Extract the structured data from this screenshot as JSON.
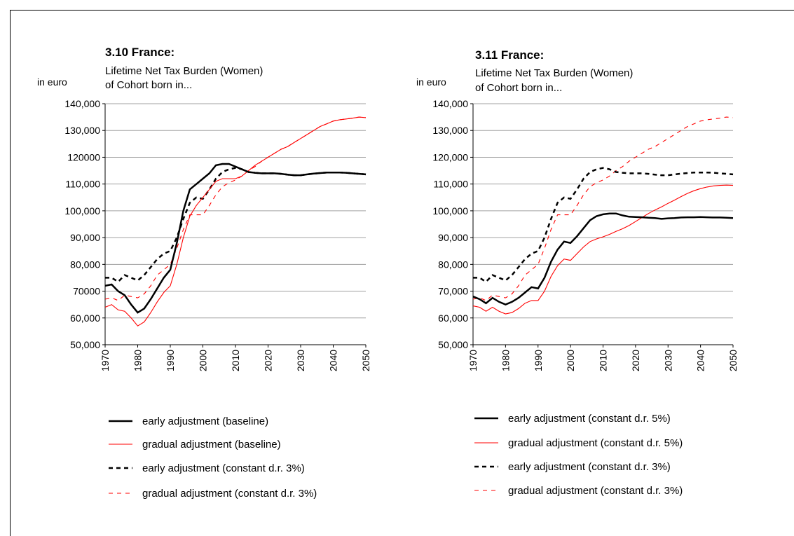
{
  "chart_data": [
    {
      "type": "line",
      "title": "3.10 France:",
      "subtitle": [
        "Lifetime Net Tax Burden (Women)",
        "of Cohort born in..."
      ],
      "ylabel": "in euro",
      "x": [
        1970,
        1972,
        1974,
        1976,
        1978,
        1980,
        1982,
        1984,
        1986,
        1988,
        1990,
        1992,
        1994,
        1996,
        1998,
        2000,
        2002,
        2004,
        2006,
        2008,
        2010,
        2012,
        2014,
        2016,
        2018,
        2020,
        2022,
        2024,
        2026,
        2028,
        2030,
        2032,
        2034,
        2036,
        2038,
        2040,
        2042,
        2044,
        2046,
        2048,
        2050
      ],
      "xlim": [
        1970,
        2050
      ],
      "xticks": [
        1970,
        1980,
        1990,
        2000,
        2010,
        2020,
        2030,
        2040,
        2050
      ],
      "ylim": [
        50000,
        140000
      ],
      "yticks": [
        {
          "value": 50000,
          "label": "50,000"
        },
        {
          "value": 60000,
          "label": "60,000"
        },
        70000,
        {
          "value": 80000,
          "label": "80,000"
        },
        {
          "value": 90000,
          "label": "90,000"
        },
        {
          "value": 100000,
          "label": "100,000"
        },
        {
          "value": 110000,
          "label": "110,000"
        },
        120000,
        {
          "value": 130000,
          "label": "130,000"
        },
        {
          "value": 140000,
          "label": "140,000"
        }
      ],
      "grid": true,
      "series": [
        {
          "name": "early adjustment (baseline)",
          "color": "#000000",
          "style": "solid",
          "values": [
            72000,
            72500,
            70000,
            68500,
            65000,
            62000,
            63500,
            67000,
            71000,
            75000,
            78000,
            88000,
            100000,
            108000,
            110000,
            112000,
            114000,
            117000,
            117500,
            117500,
            116500,
            115500,
            114500,
            114200,
            114000,
            114000,
            114000,
            113800,
            113500,
            113300,
            113300,
            113600,
            113900,
            114100,
            114300,
            114300,
            114300,
            114200,
            114000,
            113800,
            113600
          ]
        },
        {
          "name": "gradual adjustment (baseline)",
          "color": "#ff0000",
          "style": "solid",
          "values": [
            64000,
            65000,
            63000,
            62500,
            60000,
            57000,
            58500,
            62000,
            66000,
            69500,
            72000,
            80000,
            90000,
            98000,
            102000,
            105000,
            108000,
            111000,
            112000,
            112000,
            112000,
            113000,
            115000,
            117000,
            118500,
            120000,
            121500,
            123000,
            124000,
            125500,
            127000,
            128500,
            130000,
            131500,
            132500,
            133500,
            134000,
            134300,
            134600,
            135000,
            134800
          ]
        },
        {
          "name": "early adjustment (constant d.r. 3%)",
          "color": "#000000",
          "style": "dashed",
          "values": [
            75000,
            75000,
            73500,
            76000,
            75000,
            74000,
            76000,
            79000,
            82000,
            84000,
            85000,
            90000,
            97000,
            103000,
            105000,
            104500,
            108000,
            112000,
            114500,
            115500,
            116000,
            115500,
            114500,
            114200,
            114000,
            114000,
            114000,
            113800,
            113500,
            113300,
            113300,
            113600,
            113900,
            114100,
            114300,
            114300,
            114300,
            114200,
            114000,
            113800,
            113600
          ]
        },
        {
          "name": "gradual adjustment (constant d.r. 3%)",
          "color": "#ff0000",
          "style": "dashed",
          "values": [
            67000,
            67500,
            66500,
            68500,
            68000,
            67500,
            69000,
            72000,
            76000,
            78000,
            80000,
            86000,
            93000,
            98500,
            98500,
            98500,
            102000,
            106000,
            109000,
            110500,
            111500,
            113000,
            115000,
            116500,
            118500,
            120000,
            121500,
            123000,
            124000,
            125500,
            127000,
            128500,
            130000,
            131500,
            132500,
            133500,
            134000,
            134300,
            134600,
            135000,
            134800
          ]
        }
      ]
    },
    {
      "type": "line",
      "title": "3.11 France:",
      "subtitle": [
        "Lifetime Net Tax Burden (Women)",
        "of Cohort born in..."
      ],
      "ylabel": "in euro",
      "x": [
        1970,
        1972,
        1974,
        1976,
        1978,
        1980,
        1982,
        1984,
        1986,
        1988,
        1990,
        1992,
        1994,
        1996,
        1998,
        2000,
        2002,
        2004,
        2006,
        2008,
        2010,
        2012,
        2014,
        2016,
        2018,
        2020,
        2022,
        2024,
        2026,
        2028,
        2030,
        2032,
        2034,
        2036,
        2038,
        2040,
        2042,
        2044,
        2046,
        2048,
        2050
      ],
      "xlim": [
        1970,
        2050
      ],
      "xticks": [
        1970,
        1980,
        1990,
        2000,
        2010,
        2020,
        2030,
        2040,
        2050
      ],
      "ylim": [
        50000,
        140000
      ],
      "yticks": [
        {
          "value": 50000,
          "label": "50,000"
        },
        {
          "value": 60000,
          "label": "60,000"
        },
        {
          "value": 70000,
          "label": "70,000"
        },
        {
          "value": 80000,
          "label": "80,000"
        },
        {
          "value": 90000,
          "label": "90,000"
        },
        {
          "value": 100000,
          "label": "100,000"
        },
        {
          "value": 110000,
          "label": "110,000"
        },
        {
          "value": 120000,
          "label": "120,000"
        },
        {
          "value": 130000,
          "label": "130,000"
        },
        {
          "value": 140000,
          "label": "140,000"
        }
      ],
      "grid": true,
      "series": [
        {
          "name": "early adjustment (constant d.r. 5%)",
          "color": "#000000",
          "style": "solid",
          "values": [
            68000,
            67000,
            65500,
            67500,
            66000,
            65000,
            66000,
            67500,
            69500,
            71500,
            71000,
            75000,
            81000,
            85500,
            88500,
            88000,
            90500,
            93500,
            96500,
            98000,
            98700,
            99000,
            99000,
            98300,
            97800,
            97700,
            97600,
            97400,
            97300,
            97000,
            97200,
            97300,
            97500,
            97600,
            97600,
            97700,
            97600,
            97500,
            97500,
            97400,
            97300
          ]
        },
        {
          "name": "gradual adjustment (constant d.r. 5%)",
          "color": "#ff0000",
          "style": "solid",
          "values": [
            64500,
            64000,
            62500,
            64000,
            62500,
            61500,
            62000,
            63500,
            65500,
            66500,
            66500,
            70000,
            75500,
            79500,
            82000,
            81500,
            84000,
            86500,
            88500,
            89500,
            90300,
            91200,
            92300,
            93300,
            94500,
            96000,
            97500,
            99000,
            100300,
            101500,
            102800,
            104000,
            105300,
            106500,
            107500,
            108300,
            108900,
            109300,
            109500,
            109600,
            109500
          ]
        },
        {
          "name": "early adjustment (constant d.r. 3%)",
          "color": "#000000",
          "style": "dashed",
          "values": [
            75000,
            75000,
            73500,
            76000,
            75000,
            74000,
            76000,
            79000,
            82000,
            84000,
            85000,
            90000,
            97000,
            103000,
            105000,
            104500,
            108000,
            112000,
            114500,
            115500,
            116000,
            115500,
            114500,
            114200,
            114000,
            114000,
            114000,
            113800,
            113500,
            113300,
            113300,
            113600,
            113900,
            114100,
            114300,
            114300,
            114300,
            114200,
            114000,
            113800,
            113600
          ]
        },
        {
          "name": "gradual adjustment (constant d.r. 3%)",
          "color": "#ff0000",
          "style": "dashed",
          "values": [
            67000,
            67500,
            66500,
            68500,
            68000,
            67500,
            69000,
            72000,
            76000,
            78000,
            80000,
            86000,
            93000,
            98500,
            98500,
            98500,
            102000,
            106000,
            109000,
            110500,
            111500,
            113000,
            115000,
            116500,
            118500,
            120000,
            121500,
            123000,
            124000,
            125500,
            127000,
            128500,
            130000,
            131500,
            132500,
            133500,
            134000,
            134300,
            134600,
            135000,
            134800
          ]
        }
      ]
    }
  ]
}
